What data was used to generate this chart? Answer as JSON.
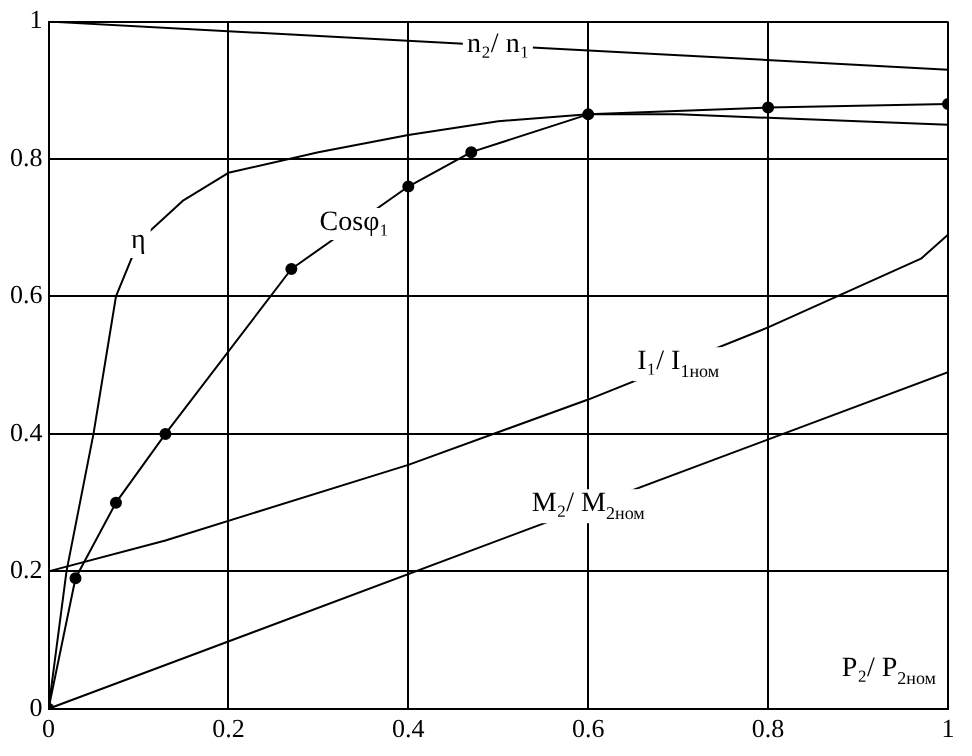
{
  "chart_data": {
    "type": "line",
    "xlabel": "P₂/ P$_{2ном}$",
    "series": [
      {
        "color": "#000000",
        "marker": "none",
        "x": [
          0,
          1
        ],
        "values": [
          1.0,
          0.93
        ]
      },
      {
        "color": "#000000",
        "marker": "none",
        "x": [
          0,
          0.02,
          0.05,
          0.075,
          0.1,
          0.15,
          0.2,
          0.3,
          0.4,
          0.5,
          0.6,
          0.7,
          0.8,
          0.9,
          1.0
        ],
        "values": [
          0,
          0.2,
          0.4,
          0.6,
          0.68,
          0.74,
          0.78,
          0.81,
          0.835,
          0.855,
          0.865,
          0.865,
          0.86,
          0.855,
          0.85
        ]
      },
      {
        "color": "#000000",
        "marker": "circle",
        "x": [
          0,
          0.03,
          0.075,
          0.13,
          0.27,
          0.4,
          0.47,
          0.6,
          0.8,
          1.0
        ],
        "values": [
          0,
          0.19,
          0.3,
          0.4,
          0.64,
          0.76,
          0.81,
          0.865,
          0.875,
          0.88
        ]
      },
      {
        "color": "#000000",
        "marker": "none",
        "x": [
          0,
          0.13,
          0.4,
          0.6,
          0.8,
          0.97,
          1.0
        ],
        "values": [
          0.2,
          0.245,
          0.355,
          0.45,
          0.555,
          0.655,
          0.69
        ]
      },
      {
        "color": "#000000",
        "marker": "none",
        "x": [
          0,
          1
        ],
        "values": [
          0,
          0.49
        ]
      }
    ],
    "xlim": [
      0,
      1
    ],
    "xticks": [
      0,
      0.2,
      0.4,
      0.6,
      0.8,
      1
    ],
    "ylim": [
      0,
      1
    ],
    "yticks": [
      0,
      0.2,
      0.4,
      0.6,
      0.8,
      1
    ],
    "grid": true,
    "legend": false,
    "annotations": [
      {
        "text": "n₂/ n₁",
        "x": 0.5,
        "y": 0.965
      },
      {
        "text": "η",
        "x": 0.1,
        "y": 0.68
      },
      {
        "text": "Cosφ₁",
        "x": 0.34,
        "y": 0.705
      },
      {
        "text": "I₁/ I$_{1ном}$",
        "x": 0.7,
        "y": 0.5025
      },
      {
        "text": "M₂/ M$_{2ном}$",
        "x": 0.6,
        "y": 0.294
      }
    ]
  }
}
